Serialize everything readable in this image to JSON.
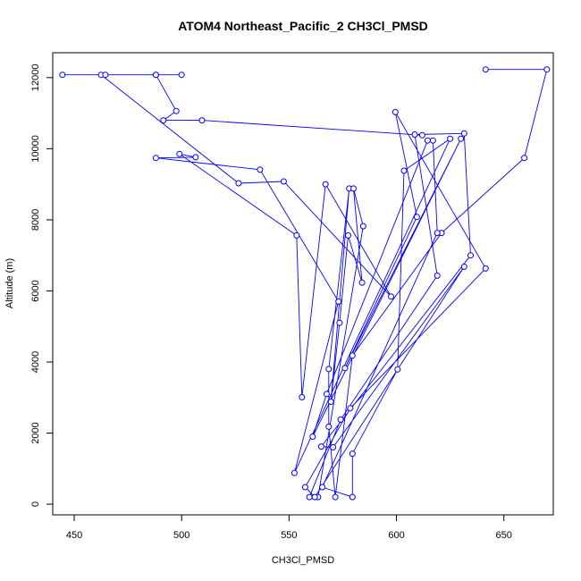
{
  "chart_data": {
    "type": "line",
    "title": "ATOM4 Northeast_Pacific_2 CH3Cl_PMSD",
    "xlabel": "CH3Cl_PMSD",
    "ylabel": "Altitude (m)",
    "xlim": [
      440,
      673
    ],
    "ylim": [
      -300,
      12700
    ],
    "xticks": [
      450,
      500,
      550,
      600,
      650
    ],
    "yticks": [
      0,
      2000,
      4000,
      6000,
      8000,
      10000,
      12000
    ],
    "grid": false,
    "legend": "none",
    "series_color": "#0000ff",
    "series": [
      {
        "points": [
          [
            641.5,
            12230
          ],
          [
            670.0,
            12230
          ],
          [
            659.5,
            9740
          ],
          [
            621.0,
            7630
          ],
          [
            579.5,
            4180
          ],
          [
            571.5,
            200
          ],
          [
            568.5,
            2180
          ],
          [
            568.5,
            3800
          ],
          [
            578.0,
            8880
          ],
          [
            569.5,
            2880
          ],
          [
            573.5,
            5100
          ],
          [
            577.5,
            7560
          ],
          [
            584.0,
            6230
          ],
          [
            580.0,
            8880
          ],
          [
            584.5,
            7820
          ],
          [
            563.5,
            200
          ],
          [
            559.5,
            200
          ],
          [
            574.0,
            2380
          ],
          [
            619.0,
            6430
          ],
          [
            608.5,
            10400
          ],
          [
            631.5,
            10430
          ],
          [
            634.5,
            7000
          ],
          [
            565.0,
            1620
          ],
          [
            570.5,
            1600
          ],
          [
            631.5,
            6680
          ],
          [
            562.0,
            200
          ],
          [
            557.5,
            480
          ],
          [
            578.5,
            2700
          ],
          [
            641.5,
            6630
          ],
          [
            599.5,
            11030
          ],
          [
            609.5,
            8080
          ],
          [
            576.0,
            3830
          ],
          [
            630.0,
            10280
          ],
          [
            561.0,
            1900
          ],
          [
            567.5,
            3100
          ],
          [
            614.5,
            10230
          ],
          [
            617.0,
            10230
          ],
          [
            619.0,
            7630
          ],
          [
            565.5,
            480
          ],
          [
            579.5,
            200
          ],
          [
            579.5,
            1420
          ],
          [
            600.5,
            3790
          ],
          [
            603.5,
            9380
          ],
          [
            625.0,
            10280
          ],
          [
            552.5,
            880
          ],
          [
            573.0,
            5700
          ],
          [
            536.5,
            9410
          ],
          [
            488.0,
            9740
          ],
          [
            506.5,
            9760
          ],
          [
            499.0,
            9850
          ],
          [
            553.5,
            7560
          ],
          [
            556.0,
            3010
          ],
          [
            567.0,
            9000
          ],
          [
            597.5,
            5840
          ],
          [
            547.5,
            9080
          ],
          [
            526.5,
            9030
          ],
          [
            462.5,
            12080
          ],
          [
            500.0,
            12080
          ],
          [
            444.5,
            12080
          ],
          [
            488.0,
            12080
          ],
          [
            464.5,
            12080
          ],
          [
            488.0,
            12080
          ],
          [
            497.5,
            11060
          ],
          [
            491.5,
            10800
          ],
          [
            509.5,
            10800
          ],
          [
            612.0,
            10380
          ]
        ]
      }
    ]
  }
}
